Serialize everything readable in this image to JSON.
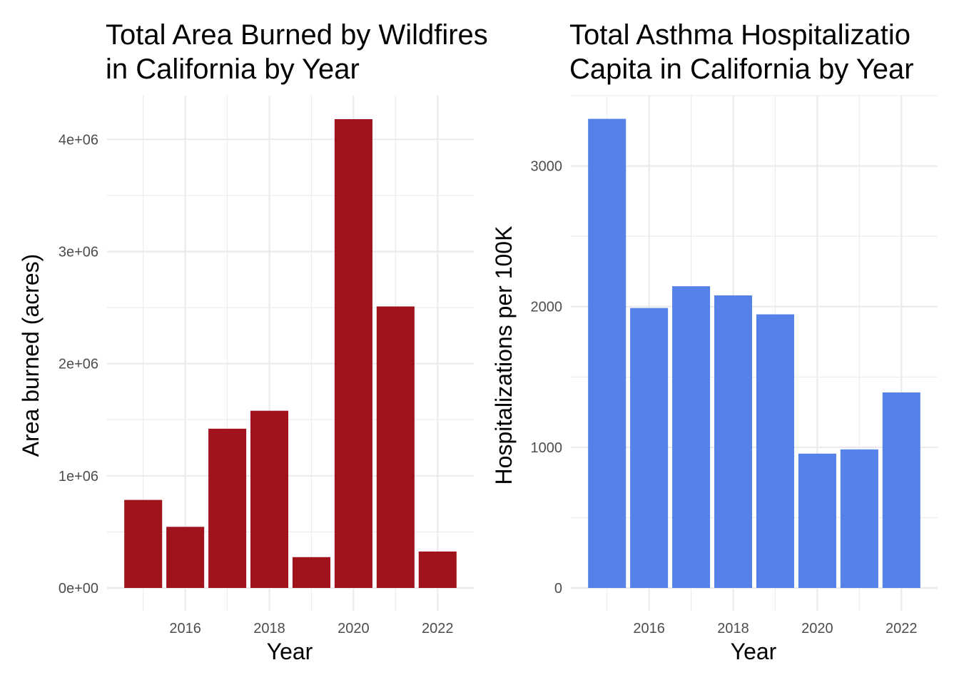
{
  "chart_data": [
    {
      "type": "bar",
      "title_lines": [
        "Total Area Burned by Wildfires",
        "in California by Year"
      ],
      "xlabel": "Year",
      "ylabel": "Area burned (acres)",
      "x": [
        2015,
        2016,
        2017,
        2018,
        2019,
        2020,
        2021,
        2022
      ],
      "values": [
        785000,
        545000,
        1420000,
        1580000,
        275000,
        4180000,
        2510000,
        325000
      ],
      "xticks": [
        "2016",
        "2018",
        "2020",
        "2022"
      ],
      "yticks": [
        "0e+00",
        "1e+06",
        "2e+06",
        "3e+06",
        "4e+06"
      ],
      "ylim": [
        0,
        4390000
      ],
      "bar_color": "#a0121c",
      "grid": true
    },
    {
      "type": "bar",
      "title_lines": [
        "Total Asthma Hospitalizatio",
        "Capita in California by Year"
      ],
      "xlabel": "Year",
      "ylabel": "Hospitalizations per 100K",
      "x": [
        2015,
        2016,
        2017,
        2018,
        2019,
        2020,
        2021,
        2022
      ],
      "values": [
        3335,
        1990,
        2145,
        2080,
        1945,
        955,
        985,
        1390
      ],
      "xticks": [
        "2016",
        "2018",
        "2020",
        "2022"
      ],
      "yticks": [
        "0",
        "1000",
        "2000",
        "3000"
      ],
      "ylim": [
        0,
        3500
      ],
      "bar_color": "#5581e9",
      "grid": true
    }
  ]
}
